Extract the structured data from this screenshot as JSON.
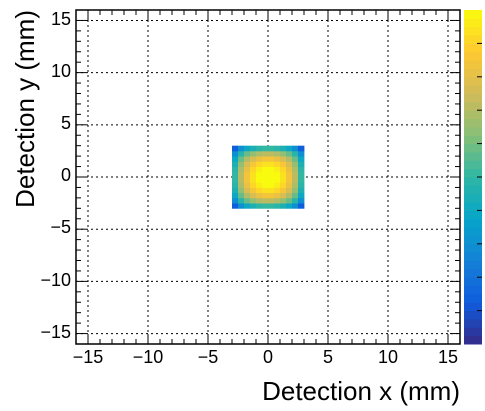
{
  "chart_data": {
    "type": "heatmap",
    "title": "",
    "xlabel": "Detection x (mm)",
    "ylabel": "Detection y (mm)",
    "xlim": [
      -16,
      16
    ],
    "ylim": [
      -16,
      16
    ],
    "x_ticks": [
      -15,
      -10,
      -5,
      0,
      5,
      10,
      15
    ],
    "y_ticks": [
      -15,
      -10,
      -5,
      0,
      5,
      10,
      15
    ],
    "x_tick_labels": [
      "−15",
      "−10",
      "−5",
      "0",
      "5",
      "10",
      "15"
    ],
    "y_tick_labels": [
      "−15",
      "−10",
      "−5",
      "0",
      "5",
      "10",
      "15"
    ],
    "grid": true,
    "bin_size": 0.5,
    "x_range": [
      -3,
      3
    ],
    "y_range": [
      -3,
      3
    ],
    "colormap": [
      "#352a87",
      "#0f5cdd",
      "#1481d6",
      "#06a4ca",
      "#2eb7a4",
      "#87bf77",
      "#d1bb59",
      "#fec832",
      "#f9fb0e"
    ],
    "colorbar": {
      "range": [
        0,
        1
      ],
      "ticks": []
    }
  }
}
